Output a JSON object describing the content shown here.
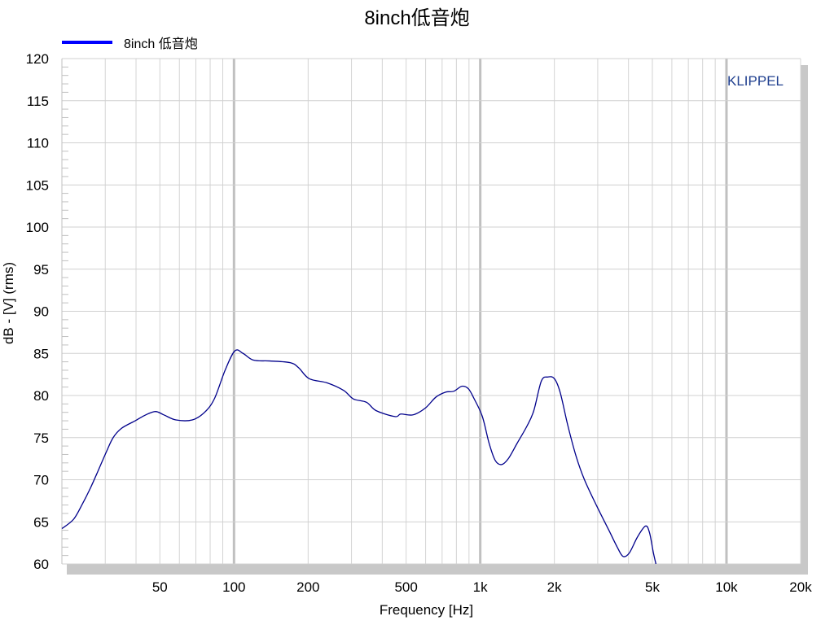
{
  "chart_data": {
    "type": "line",
    "title": "8inch低音炮",
    "xlabel": "Frequency [Hz]",
    "ylabel": "dB - [V]  (rms)",
    "xscale": "log",
    "xlim": [
      20,
      20000
    ],
    "ylim": [
      60,
      120
    ],
    "grid": true,
    "legend_position": "top-left",
    "watermark": "KLIPPEL",
    "x_ticks": [
      50,
      100,
      200,
      500,
      1000,
      2000,
      5000,
      10000,
      20000
    ],
    "x_tick_labels": [
      "50",
      "100",
      "200",
      "500",
      "1k",
      "2k",
      "5k",
      "10k",
      "20k"
    ],
    "y_ticks": [
      60,
      65,
      70,
      75,
      80,
      85,
      90,
      95,
      100,
      105,
      110,
      115,
      120
    ],
    "y_tick_labels": [
      "60",
      "65",
      "70",
      "75",
      "80",
      "85",
      "90",
      "95",
      "100",
      "105",
      "110",
      "115",
      "120"
    ],
    "series": [
      {
        "name": "8inch 低音炮",
        "color": "#00008b",
        "legend_color": "#0000ff",
        "x": [
          20,
          22.3,
          24.2,
          26.1,
          28.1,
          30.3,
          32.3,
          34.9,
          39.7,
          43.8,
          48,
          51.9,
          58.1,
          67.7,
          75.9,
          83.2,
          92,
          100.8,
          108.8,
          120,
          140,
          169,
          183,
          202,
          239,
          279,
          305,
          345,
          378,
          451,
          476,
          533,
          598,
          660,
          723,
          780,
          842,
          895,
          945,
          1020,
          1087,
          1150,
          1220,
          1300,
          1410,
          1550,
          1650,
          1770,
          1880,
          2000,
          2110,
          2270,
          2450,
          2650,
          2970,
          3330,
          3600,
          3800,
          4030,
          4350,
          4690,
          4870,
          5050,
          5170
        ],
        "y": [
          64.2,
          65.3,
          67.1,
          69.0,
          71.1,
          73.3,
          75.0,
          76.1,
          77.0,
          77.7,
          78.1,
          77.7,
          77.1,
          77.1,
          78.0,
          79.6,
          83.0,
          85.3,
          85.0,
          84.2,
          84.1,
          83.9,
          83.3,
          82.0,
          81.5,
          80.6,
          79.6,
          79.2,
          78.2,
          77.5,
          77.8,
          77.7,
          78.5,
          79.8,
          80.4,
          80.5,
          81.1,
          80.8,
          79.6,
          77.5,
          74.3,
          72.3,
          71.8,
          72.5,
          74.3,
          76.4,
          78.2,
          81.7,
          82.2,
          82.0,
          80.4,
          76.4,
          72.8,
          70.0,
          66.9,
          64.0,
          62.0,
          60.9,
          61.3,
          63.2,
          64.5,
          63.7,
          61.3,
          60.0
        ]
      }
    ]
  }
}
